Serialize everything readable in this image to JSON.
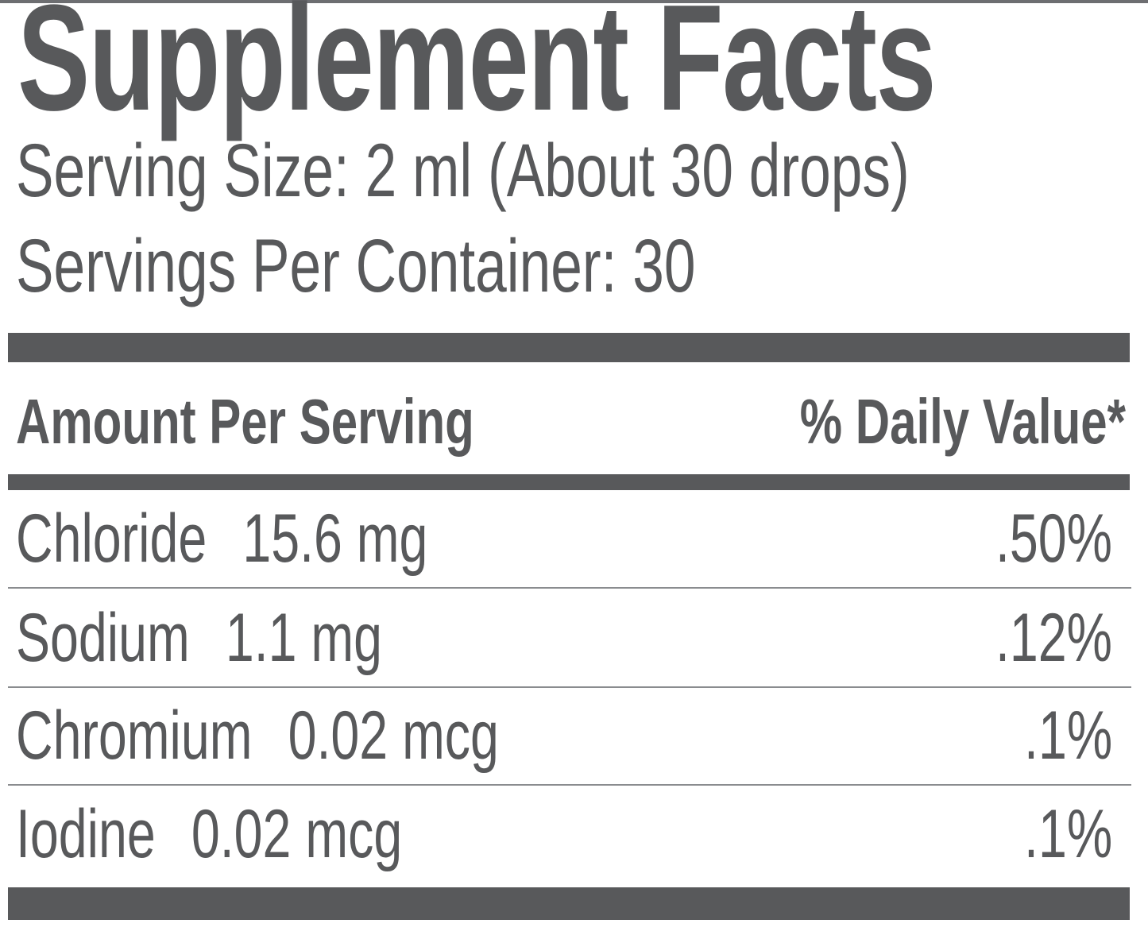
{
  "label": {
    "title": "Supplement Facts",
    "serving_size": "Serving Size: 2 ml (About 30 drops)",
    "servings_per_container": "Servings Per Container: 30",
    "columns": {
      "amount_header": "Amount Per Serving",
      "dv_header": "% Daily Value*"
    },
    "rows": [
      {
        "name": "Chloride",
        "amount": "15.6 mg",
        "daily_value": ".50%"
      },
      {
        "name": "Sodium",
        "amount": "1.1 mg",
        "daily_value": ".12%"
      },
      {
        "name": "Chromium",
        "amount": "0.02 mcg",
        "daily_value": ".1%"
      },
      {
        "name": "Iodine",
        "amount": "0.02 mcg",
        "daily_value": ".1%"
      }
    ],
    "colors": {
      "ink": "#58595B",
      "divider": "#8A8C8F",
      "top-rule": "#6D6E71"
    }
  }
}
